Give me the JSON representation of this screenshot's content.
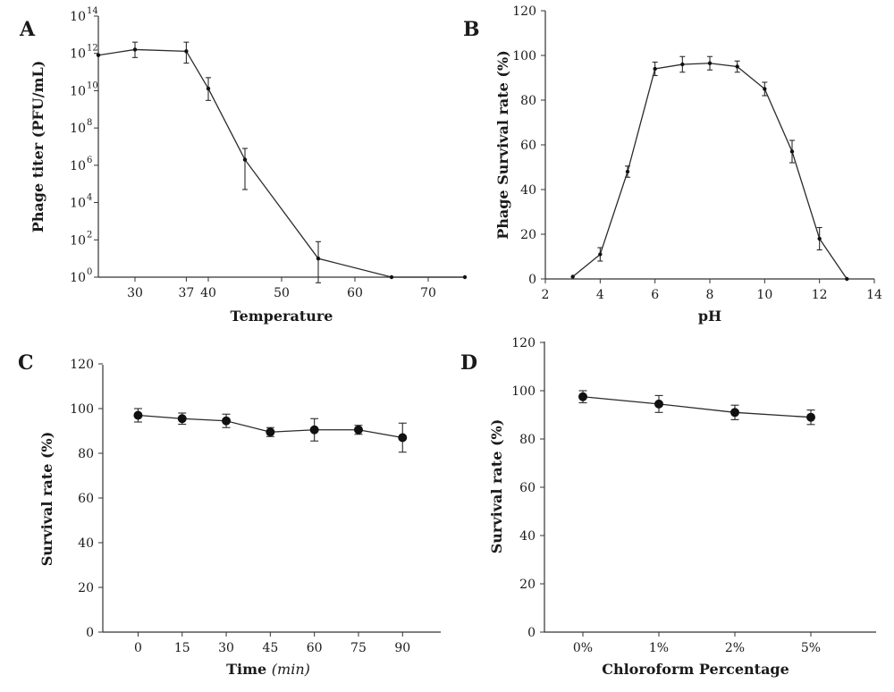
{
  "chart_data": [
    {
      "panel": "A",
      "type": "line",
      "xlabel": "Temperature",
      "ylabel": "Phage titer (PFU/mL)",
      "yscale": "log",
      "xlim": [
        25,
        75
      ],
      "ylim": [
        1,
        100000000000000.0
      ],
      "xticks": [
        30,
        37,
        40,
        50,
        60,
        70
      ],
      "yticks": [
        {
          "base": "10",
          "exp": "0",
          "value": 1
        },
        {
          "base": "10",
          "exp": "2",
          "value": 100
        },
        {
          "base": "10",
          "exp": "4",
          "value": 10000
        },
        {
          "base": "10",
          "exp": "6",
          "value": 1000000.0
        },
        {
          "base": "10",
          "exp": "8",
          "value": 100000000.0
        },
        {
          "base": "10",
          "exp": "10",
          "value": 10000000000.0
        },
        {
          "base": "10",
          "exp": "12",
          "value": 1000000000000.0
        },
        {
          "base": "10",
          "exp": "14",
          "value": 100000000000000.0
        }
      ],
      "marker": "small",
      "points": [
        {
          "x": 25,
          "y": 800000000000.0
        },
        {
          "x": 30,
          "y": 1600000000000.0,
          "err_low": 600000000000.0,
          "err_high": 4000000000000.0
        },
        {
          "x": 37,
          "y": 1300000000000.0,
          "err_low": 300000000000.0,
          "err_high": 4000000000000.0
        },
        {
          "x": 40,
          "y": 13000000000.0,
          "err_low": 3000000000.0,
          "err_high": 50000000000.0
        },
        {
          "x": 45,
          "y": 2000000.0,
          "err_low": 50000.0,
          "err_high": 8000000.0
        },
        {
          "x": 55,
          "y": 10,
          "err_low": 0.5,
          "err_high": 80
        },
        {
          "x": 65,
          "y": 1
        },
        {
          "x": 75,
          "y": 1
        }
      ],
      "grid": false
    },
    {
      "panel": "B",
      "type": "line",
      "xlabel": "pH",
      "ylabel": "Phage Survival rate (%)",
      "xlim": [
        2,
        14
      ],
      "ylim": [
        0,
        120
      ],
      "xticks": [
        2,
        4,
        6,
        8,
        10,
        12,
        14
      ],
      "yticks": [
        0,
        20,
        40,
        60,
        80,
        100,
        120
      ],
      "marker": "small",
      "points": [
        {
          "x": 3,
          "y": 1
        },
        {
          "x": 4,
          "y": 11,
          "err": 3
        },
        {
          "x": 5,
          "y": 48,
          "err": 2.5
        },
        {
          "x": 6,
          "y": 94,
          "err": 3
        },
        {
          "x": 7,
          "y": 96,
          "err": 3.5
        },
        {
          "x": 8,
          "y": 96.5,
          "err": 3
        },
        {
          "x": 9,
          "y": 95,
          "err": 2.5
        },
        {
          "x": 10,
          "y": 85,
          "err": 3
        },
        {
          "x": 11,
          "y": 57,
          "err": 5
        },
        {
          "x": 12,
          "y": 18,
          "err": 5
        },
        {
          "x": 13,
          "y": 0
        }
      ],
      "grid": false
    },
    {
      "panel": "C",
      "type": "line",
      "xlabel": "Time",
      "xlabel_unit": "(min)",
      "ylabel": "Survival rate (%)",
      "xlim": [
        -12,
        103
      ],
      "ylim": [
        0,
        120
      ],
      "xticks": [
        0,
        15,
        30,
        45,
        60,
        75,
        90
      ],
      "yticks": [
        0,
        20,
        40,
        60,
        80,
        100,
        120
      ],
      "marker": "large",
      "points": [
        {
          "x": 0,
          "y": 97,
          "err": 3
        },
        {
          "x": 15,
          "y": 95.5,
          "err": 2.5
        },
        {
          "x": 30,
          "y": 94.5,
          "err": 3
        },
        {
          "x": 45,
          "y": 89.5,
          "err": 2
        },
        {
          "x": 60,
          "y": 90.5,
          "err": 5
        },
        {
          "x": 75,
          "y": 90.5,
          "err": 2
        },
        {
          "x": 90,
          "y": 87,
          "err": 6.5
        }
      ],
      "grid": false
    },
    {
      "panel": "D",
      "type": "line",
      "xlabel": "Chloroform Percentage",
      "ylabel": "Survival rate (%)",
      "categories": [
        "0%",
        "1%",
        "2%",
        "5%"
      ],
      "ylim": [
        0,
        120
      ],
      "yticks": [
        0,
        20,
        40,
        60,
        80,
        100,
        120
      ],
      "marker": "large",
      "values": [
        97.5,
        94.5,
        91,
        89
      ],
      "errors": [
        2.5,
        3.5,
        3,
        3
      ],
      "grid": false
    }
  ]
}
